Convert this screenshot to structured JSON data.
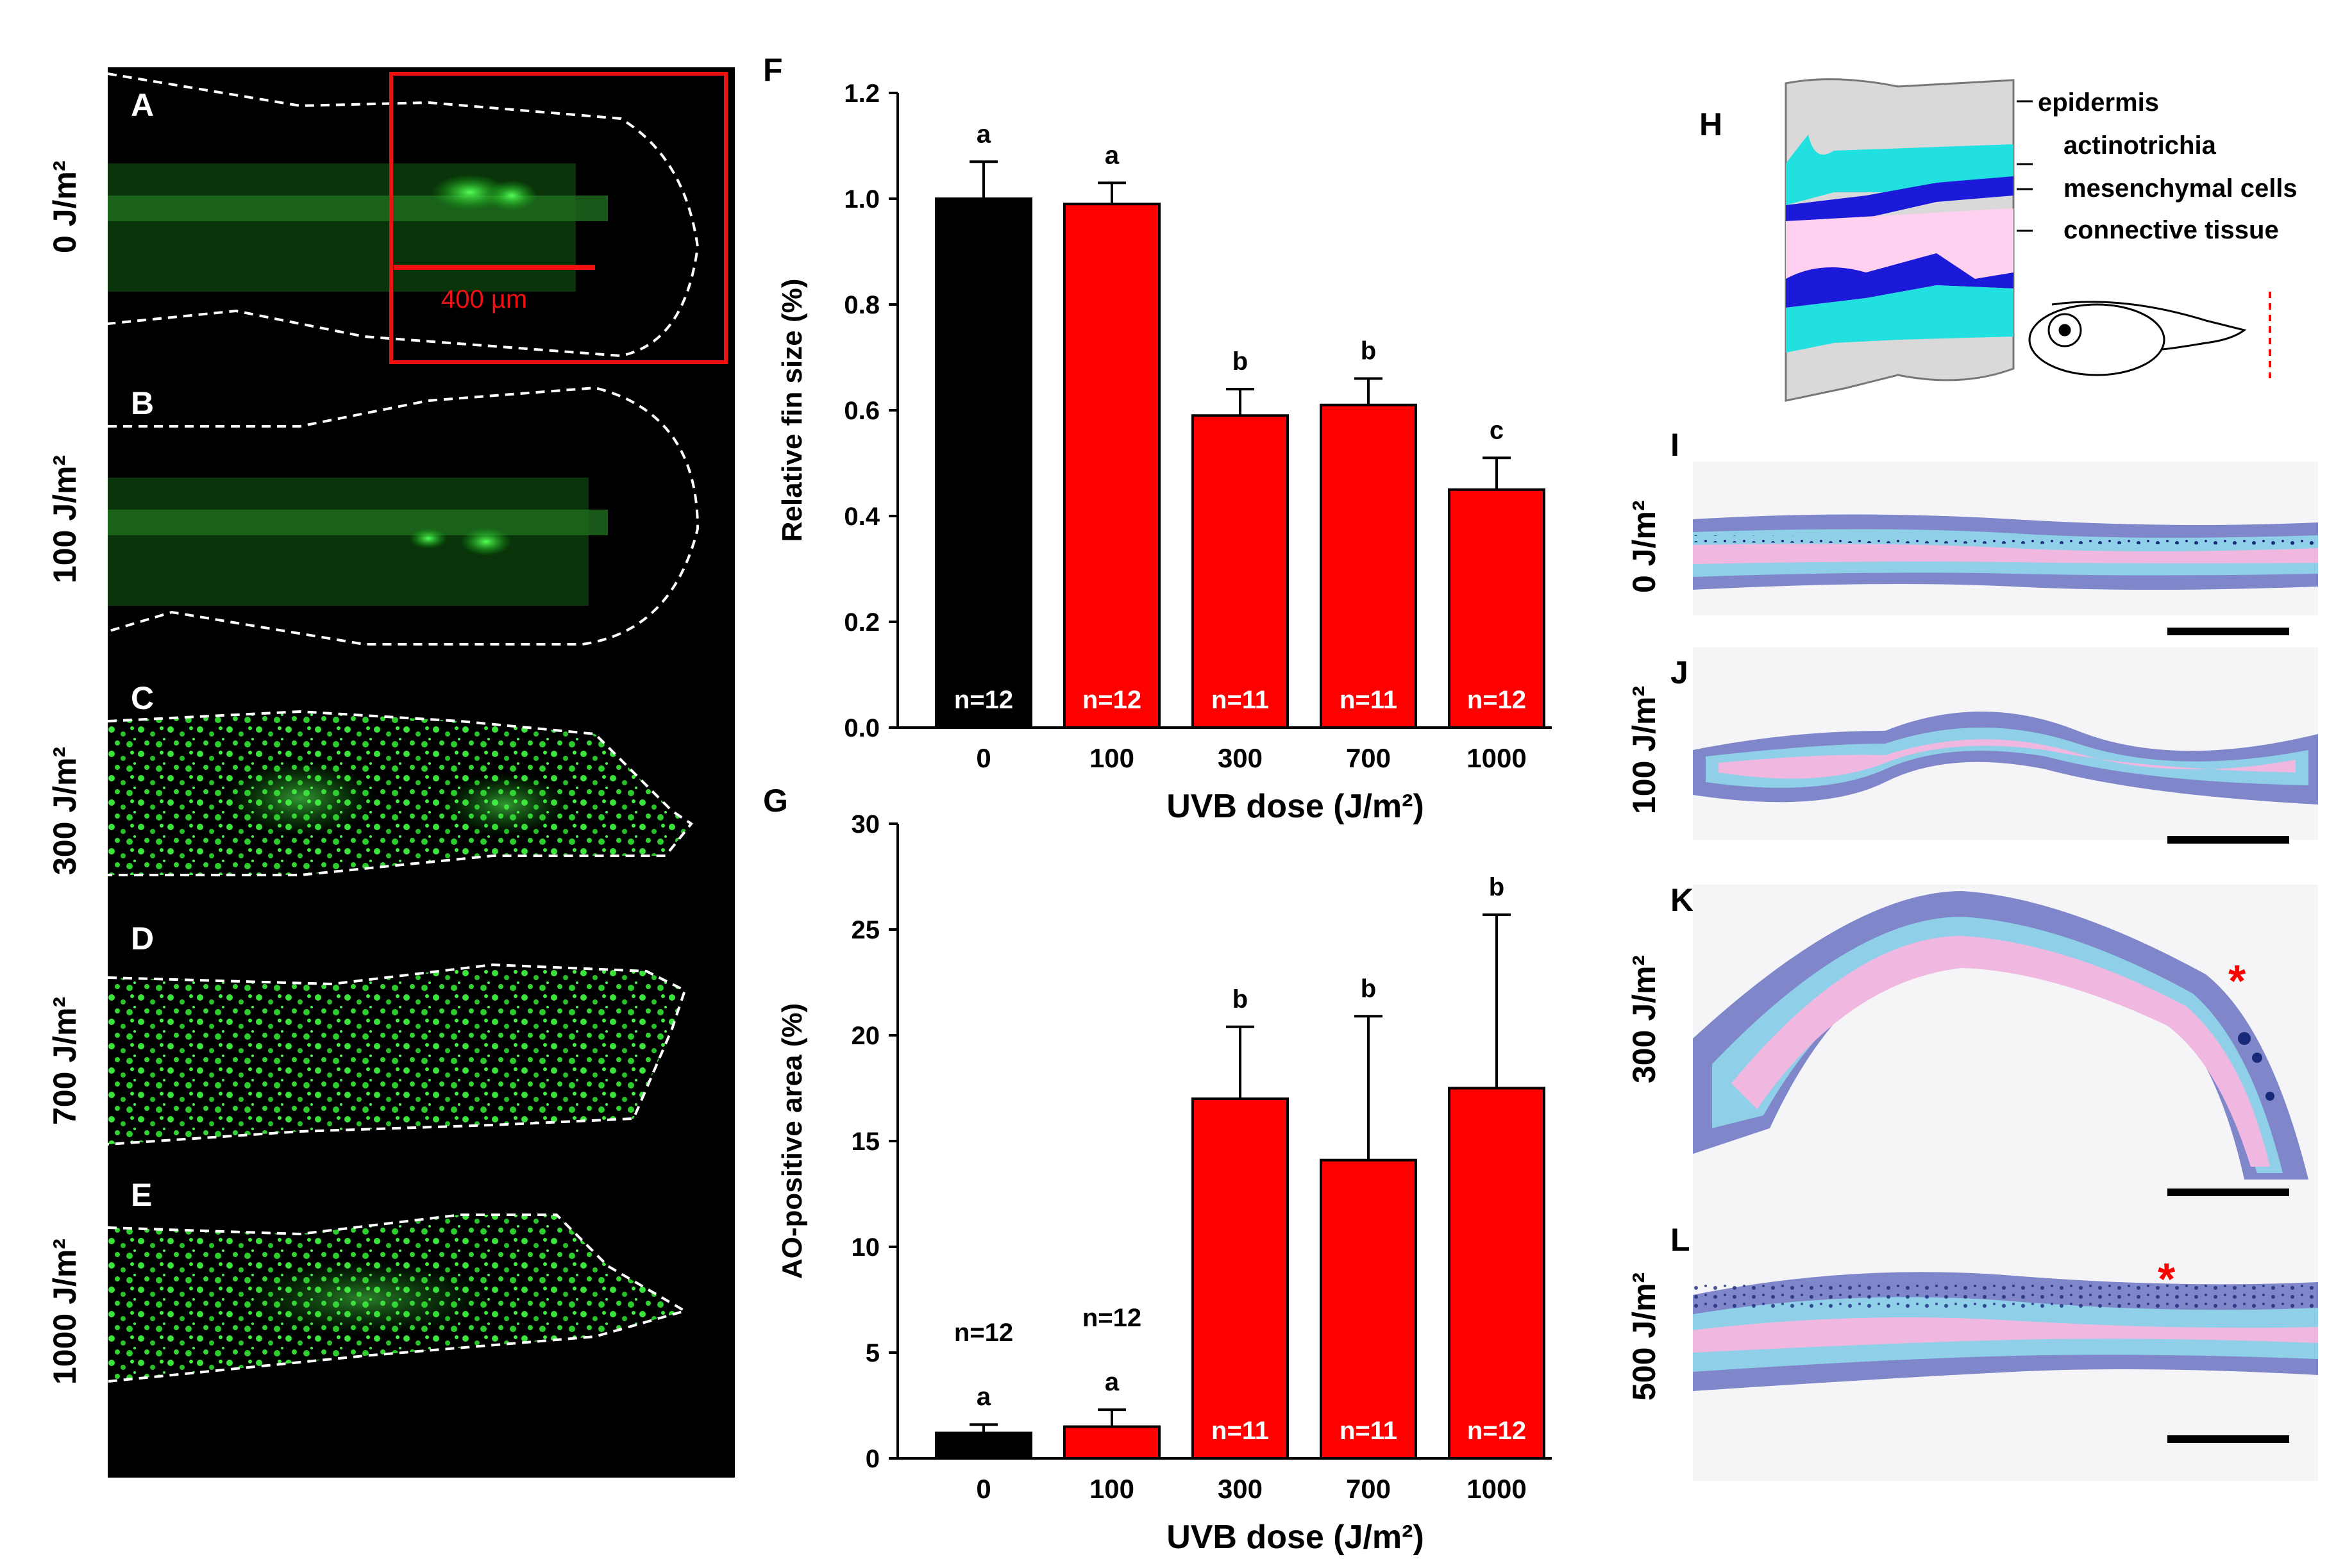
{
  "left_panels": {
    "letters": [
      "A",
      "B",
      "C",
      "D",
      "E"
    ],
    "doses": [
      "0 J/m²",
      "100 J/m²",
      "300 J/m²",
      "700 J/m²",
      "1000 J/m²"
    ],
    "scalebar_label": "400 µm",
    "colors": {
      "background": "#000000",
      "fluorescence": "#22dd22",
      "scalebar": "#ee1111",
      "outline": "#ffffff"
    }
  },
  "chart_data": [
    {
      "panel": "F",
      "type": "bar",
      "categories": [
        "0",
        "100",
        "300",
        "700",
        "1000"
      ],
      "values": [
        1.0,
        0.99,
        0.59,
        0.61,
        0.45
      ],
      "errors": [
        0.07,
        0.04,
        0.05,
        0.05,
        0.06
      ],
      "significance": [
        "a",
        "a",
        "b",
        "b",
        "c"
      ],
      "n_labels": [
        "n=12",
        "n=12",
        "n=11",
        "n=11",
        "n=12"
      ],
      "colors": [
        "#000000",
        "#ff0000",
        "#ff0000",
        "#ff0000",
        "#ff0000"
      ],
      "xlabel": "UVB dose (J/m²)",
      "ylabel": "Relative fin size (%)",
      "ylim": [
        0,
        1.2
      ],
      "yticks": [
        "0.0",
        "0.2",
        "0.4",
        "0.6",
        "0.8",
        "1.0",
        "1.2"
      ]
    },
    {
      "panel": "G",
      "type": "bar",
      "categories": [
        "0",
        "100",
        "300",
        "700",
        "1000"
      ],
      "values": [
        1.2,
        1.5,
        17.0,
        14.1,
        17.5
      ],
      "errors": [
        0.4,
        0.8,
        3.4,
        6.8,
        8.2
      ],
      "significance": [
        "a",
        "a",
        "b",
        "b",
        "b"
      ],
      "n_labels": [
        "n=12",
        "n=12",
        "n=11",
        "n=11",
        "n=12"
      ],
      "colors": [
        "#000000",
        "#ff0000",
        "#ff0000",
        "#ff0000",
        "#ff0000"
      ],
      "xlabel": "UVB dose (J/m²)",
      "ylabel": "AO-positive area (%)",
      "ylim": [
        0,
        30
      ],
      "yticks": [
        "0",
        "5",
        "10",
        "15",
        "20",
        "25",
        "30"
      ]
    }
  ],
  "diagram_h": {
    "letter": "H",
    "labels": [
      "epidermis",
      "actinotrichia",
      "mesenchymal cells",
      "connective tissue"
    ],
    "colors": {
      "epidermis": "#d9d9d9",
      "actinotrichia": "#22e0e0",
      "mesenchymal": "#1a1ad8",
      "connective": "#ffd0f0",
      "cut_line": "#ff0000"
    }
  },
  "histology": {
    "letters": [
      "I",
      "J",
      "K",
      "L"
    ],
    "doses": [
      "0 J/m²",
      "100 J/m²",
      "300 J/m²",
      "500 J/m²"
    ],
    "asterisk": "*"
  }
}
